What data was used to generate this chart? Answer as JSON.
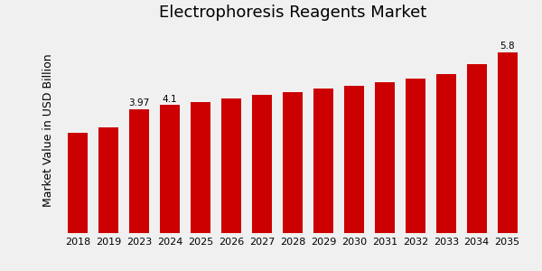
{
  "title": "Electrophoresis Reagents Market",
  "ylabel": "Market Value in USD Billion",
  "categories": [
    "2018",
    "2019",
    "2023",
    "2024",
    "2025",
    "2026",
    "2027",
    "2028",
    "2029",
    "2030",
    "2031",
    "2032",
    "2033",
    "2034",
    "2035"
  ],
  "values": [
    3.2,
    3.4,
    3.97,
    4.1,
    4.2,
    4.32,
    4.42,
    4.52,
    4.62,
    4.73,
    4.84,
    4.95,
    5.1,
    5.4,
    5.8
  ],
  "bar_color": "#cc0000",
  "label_values": {
    "2023": "3.97",
    "2024": "4.1",
    "2035": "5.8"
  },
  "background_color": "#f0f0f0",
  "footer_color": "#cc0000",
  "title_fontsize": 13,
  "ylabel_fontsize": 9,
  "tick_fontsize": 8
}
